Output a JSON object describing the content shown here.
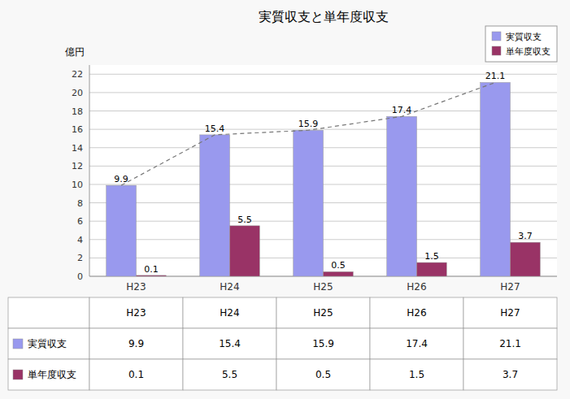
{
  "chart_data": {
    "type": "bar",
    "title": "実質収支と単年度収支",
    "ylabel": "億円",
    "categories": [
      "H23",
      "H24",
      "H25",
      "H26",
      "H27"
    ],
    "series": [
      {
        "name": "実質収支",
        "type": "bar",
        "color": "#9999ee",
        "values": [
          9.9,
          15.4,
          15.9,
          17.4,
          21.1
        ]
      },
      {
        "name": "単年度収支",
        "type": "bar",
        "color": "#993366",
        "values": [
          0.1,
          5.5,
          0.5,
          1.5,
          3.7
        ]
      },
      {
        "type": "line",
        "color": "#777777",
        "line_style": "dashed",
        "values": [
          9.9,
          15.4,
          15.9,
          17.4,
          21.1
        ]
      }
    ],
    "ylim": [
      0,
      23
    ],
    "yticks": [
      0,
      2,
      4,
      6,
      8,
      10,
      12,
      14,
      16,
      18,
      20,
      22
    ],
    "grid": true,
    "legend": "upper right",
    "data_labels": true
  }
}
